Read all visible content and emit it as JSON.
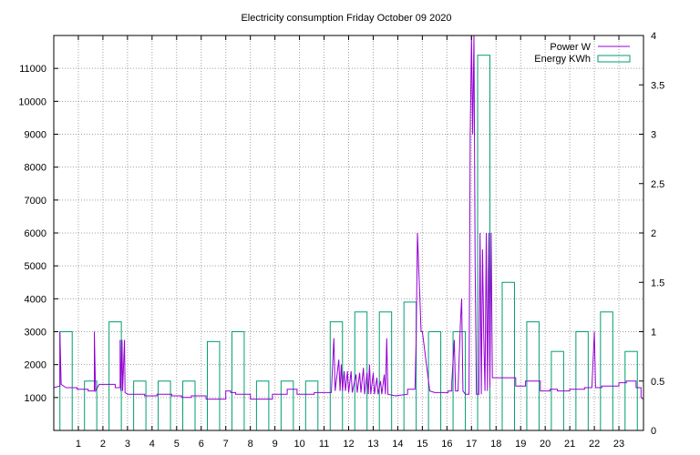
{
  "chart_data": {
    "type": "bar",
    "title": "Electricity consumption Friday October 09 2020",
    "legend_position": "top-right",
    "grid": true,
    "colors": {
      "power": "#9400d3",
      "energy": "#009e73",
      "grid": "#a0a0a0",
      "frame": "#000000"
    },
    "x_ticks": [
      "1",
      "2",
      "3",
      "4",
      "5",
      "6",
      "7",
      "8",
      "9",
      "10",
      "11",
      "12",
      "13",
      "14",
      "15",
      "16",
      "17",
      "18",
      "19",
      "20",
      "21",
      "22",
      "23"
    ],
    "xlim": [
      0,
      24
    ],
    "y_left_ticks": [
      "1000",
      "2000",
      "3000",
      "4000",
      "5000",
      "6000",
      "7000",
      "8000",
      "9000",
      "10000",
      "11000"
    ],
    "ylim_left": [
      0,
      12000
    ],
    "y_right_ticks": [
      "0",
      "0.5",
      "1",
      "1.5",
      "2",
      "2.5",
      "3",
      "3.5",
      "4"
    ],
    "ylim_right": [
      0,
      4
    ],
    "series": [
      {
        "name": "Power W",
        "axis": "left",
        "style": "line",
        "points": [
          [
            0.0,
            1300
          ],
          [
            0.25,
            1350
          ],
          [
            0.25,
            3000
          ],
          [
            0.3,
            1400
          ],
          [
            0.5,
            1300
          ],
          [
            0.95,
            1300
          ],
          [
            0.95,
            1250
          ],
          [
            1.4,
            1250
          ],
          [
            1.4,
            1200
          ],
          [
            1.65,
            1200
          ],
          [
            1.65,
            3000
          ],
          [
            1.7,
            1200
          ],
          [
            1.85,
            1400
          ],
          [
            2.5,
            1400
          ],
          [
            2.5,
            1300
          ],
          [
            2.7,
            1300
          ],
          [
            2.7,
            2750
          ],
          [
            2.73,
            1200
          ],
          [
            2.78,
            2750
          ],
          [
            2.8,
            1200
          ],
          [
            2.88,
            2750
          ],
          [
            2.9,
            1150
          ],
          [
            3.0,
            1100
          ],
          [
            3.7,
            1100
          ],
          [
            3.7,
            1050
          ],
          [
            4.2,
            1050
          ],
          [
            4.2,
            1100
          ],
          [
            4.8,
            1100
          ],
          [
            4.8,
            1050
          ],
          [
            5.2,
            1050
          ],
          [
            5.2,
            1000
          ],
          [
            5.6,
            1000
          ],
          [
            5.6,
            1050
          ],
          [
            6.2,
            1050
          ],
          [
            6.2,
            950
          ],
          [
            7.0,
            950
          ],
          [
            7.0,
            1200
          ],
          [
            7.2,
            1200
          ],
          [
            7.2,
            1150
          ],
          [
            7.4,
            1150
          ],
          [
            7.4,
            1100
          ],
          [
            8.0,
            1100
          ],
          [
            8.0,
            950
          ],
          [
            8.9,
            950
          ],
          [
            8.9,
            1100
          ],
          [
            9.5,
            1100
          ],
          [
            9.5,
            1250
          ],
          [
            9.9,
            1250
          ],
          [
            9.9,
            1100
          ],
          [
            10.6,
            1100
          ],
          [
            10.6,
            1150
          ],
          [
            11.3,
            1150
          ],
          [
            11.3,
            1200
          ],
          [
            11.4,
            2800
          ],
          [
            11.45,
            1200
          ],
          [
            11.6,
            2150
          ],
          [
            11.65,
            1200
          ],
          [
            11.7,
            2000
          ],
          [
            11.75,
            1200
          ],
          [
            11.82,
            1800
          ],
          [
            11.87,
            1200
          ],
          [
            11.95,
            1800
          ],
          [
            12.0,
            1150
          ],
          [
            12.1,
            1800
          ],
          [
            12.15,
            1150
          ],
          [
            12.3,
            1700
          ],
          [
            12.35,
            1150
          ],
          [
            12.45,
            1750
          ],
          [
            12.5,
            1150
          ],
          [
            12.6,
            1900
          ],
          [
            12.65,
            1100
          ],
          [
            12.75,
            1750
          ],
          [
            12.8,
            1100
          ],
          [
            12.85,
            2000
          ],
          [
            12.9,
            1100
          ],
          [
            13.0,
            1750
          ],
          [
            13.05,
            1100
          ],
          [
            13.15,
            1600
          ],
          [
            13.2,
            1100
          ],
          [
            13.3,
            1500
          ],
          [
            13.35,
            1100
          ],
          [
            13.45,
            1700
          ],
          [
            13.5,
            1100
          ],
          [
            13.55,
            2800
          ],
          [
            13.6,
            1100
          ],
          [
            13.9,
            1050
          ],
          [
            14.4,
            1100
          ],
          [
            14.4,
            1250
          ],
          [
            14.7,
            1250
          ],
          [
            14.75,
            2800
          ],
          [
            14.8,
            6000
          ],
          [
            14.85,
            5000
          ],
          [
            14.9,
            4000
          ],
          [
            14.95,
            3000
          ],
          [
            15.0,
            3000
          ],
          [
            15.3,
            1200
          ],
          [
            15.5,
            1150
          ],
          [
            16.05,
            1150
          ],
          [
            16.05,
            1200
          ],
          [
            16.2,
            1200
          ],
          [
            16.2,
            1450
          ],
          [
            16.3,
            2750
          ],
          [
            16.35,
            1200
          ],
          [
            16.45,
            1200
          ],
          [
            16.55,
            3300
          ],
          [
            16.6,
            4000
          ],
          [
            16.65,
            1200
          ],
          [
            16.75,
            1100
          ],
          [
            16.9,
            1100
          ],
          [
            16.95,
            9000
          ],
          [
            17.0,
            12000
          ],
          [
            17.05,
            9000
          ],
          [
            17.1,
            12000
          ],
          [
            17.15,
            5000
          ],
          [
            17.2,
            1100
          ],
          [
            17.3,
            1100
          ],
          [
            17.35,
            6000
          ],
          [
            17.4,
            1100
          ],
          [
            17.45,
            5500
          ],
          [
            17.5,
            2800
          ],
          [
            17.55,
            1200
          ],
          [
            17.6,
            6000
          ],
          [
            17.65,
            1200
          ],
          [
            17.7,
            6000
          ],
          [
            17.75,
            1300
          ],
          [
            17.8,
            6000
          ],
          [
            17.85,
            1600
          ],
          [
            18.0,
            1600
          ],
          [
            18.8,
            1600
          ],
          [
            18.8,
            1350
          ],
          [
            19.2,
            1350
          ],
          [
            19.2,
            1500
          ],
          [
            19.8,
            1500
          ],
          [
            19.8,
            1200
          ],
          [
            20.2,
            1200
          ],
          [
            20.2,
            1250
          ],
          [
            20.5,
            1250
          ],
          [
            20.5,
            1200
          ],
          [
            21.0,
            1200
          ],
          [
            21.0,
            1250
          ],
          [
            21.6,
            1250
          ],
          [
            21.6,
            1300
          ],
          [
            21.9,
            1300
          ],
          [
            22.0,
            3000
          ],
          [
            22.05,
            1300
          ],
          [
            22.3,
            1300
          ],
          [
            22.3,
            1350
          ],
          [
            23.0,
            1350
          ],
          [
            23.0,
            1450
          ],
          [
            23.3,
            1450
          ],
          [
            23.3,
            1500
          ],
          [
            23.7,
            1500
          ],
          [
            23.7,
            1300
          ],
          [
            23.9,
            1300
          ],
          [
            23.9,
            1000
          ],
          [
            24.0,
            950
          ]
        ]
      },
      {
        "name": "Energy KWh",
        "axis": "right",
        "style": "boxes",
        "values": [
          1.0,
          0.5,
          1.1,
          0.5,
          0.5,
          0.5,
          0.9,
          1.0,
          0.5,
          0.5,
          0.5,
          1.1,
          1.2,
          1.2,
          1.3,
          1.0,
          1.0,
          3.8,
          1.5,
          1.1,
          0.8,
          1.0,
          1.2,
          0.8
        ]
      }
    ]
  }
}
